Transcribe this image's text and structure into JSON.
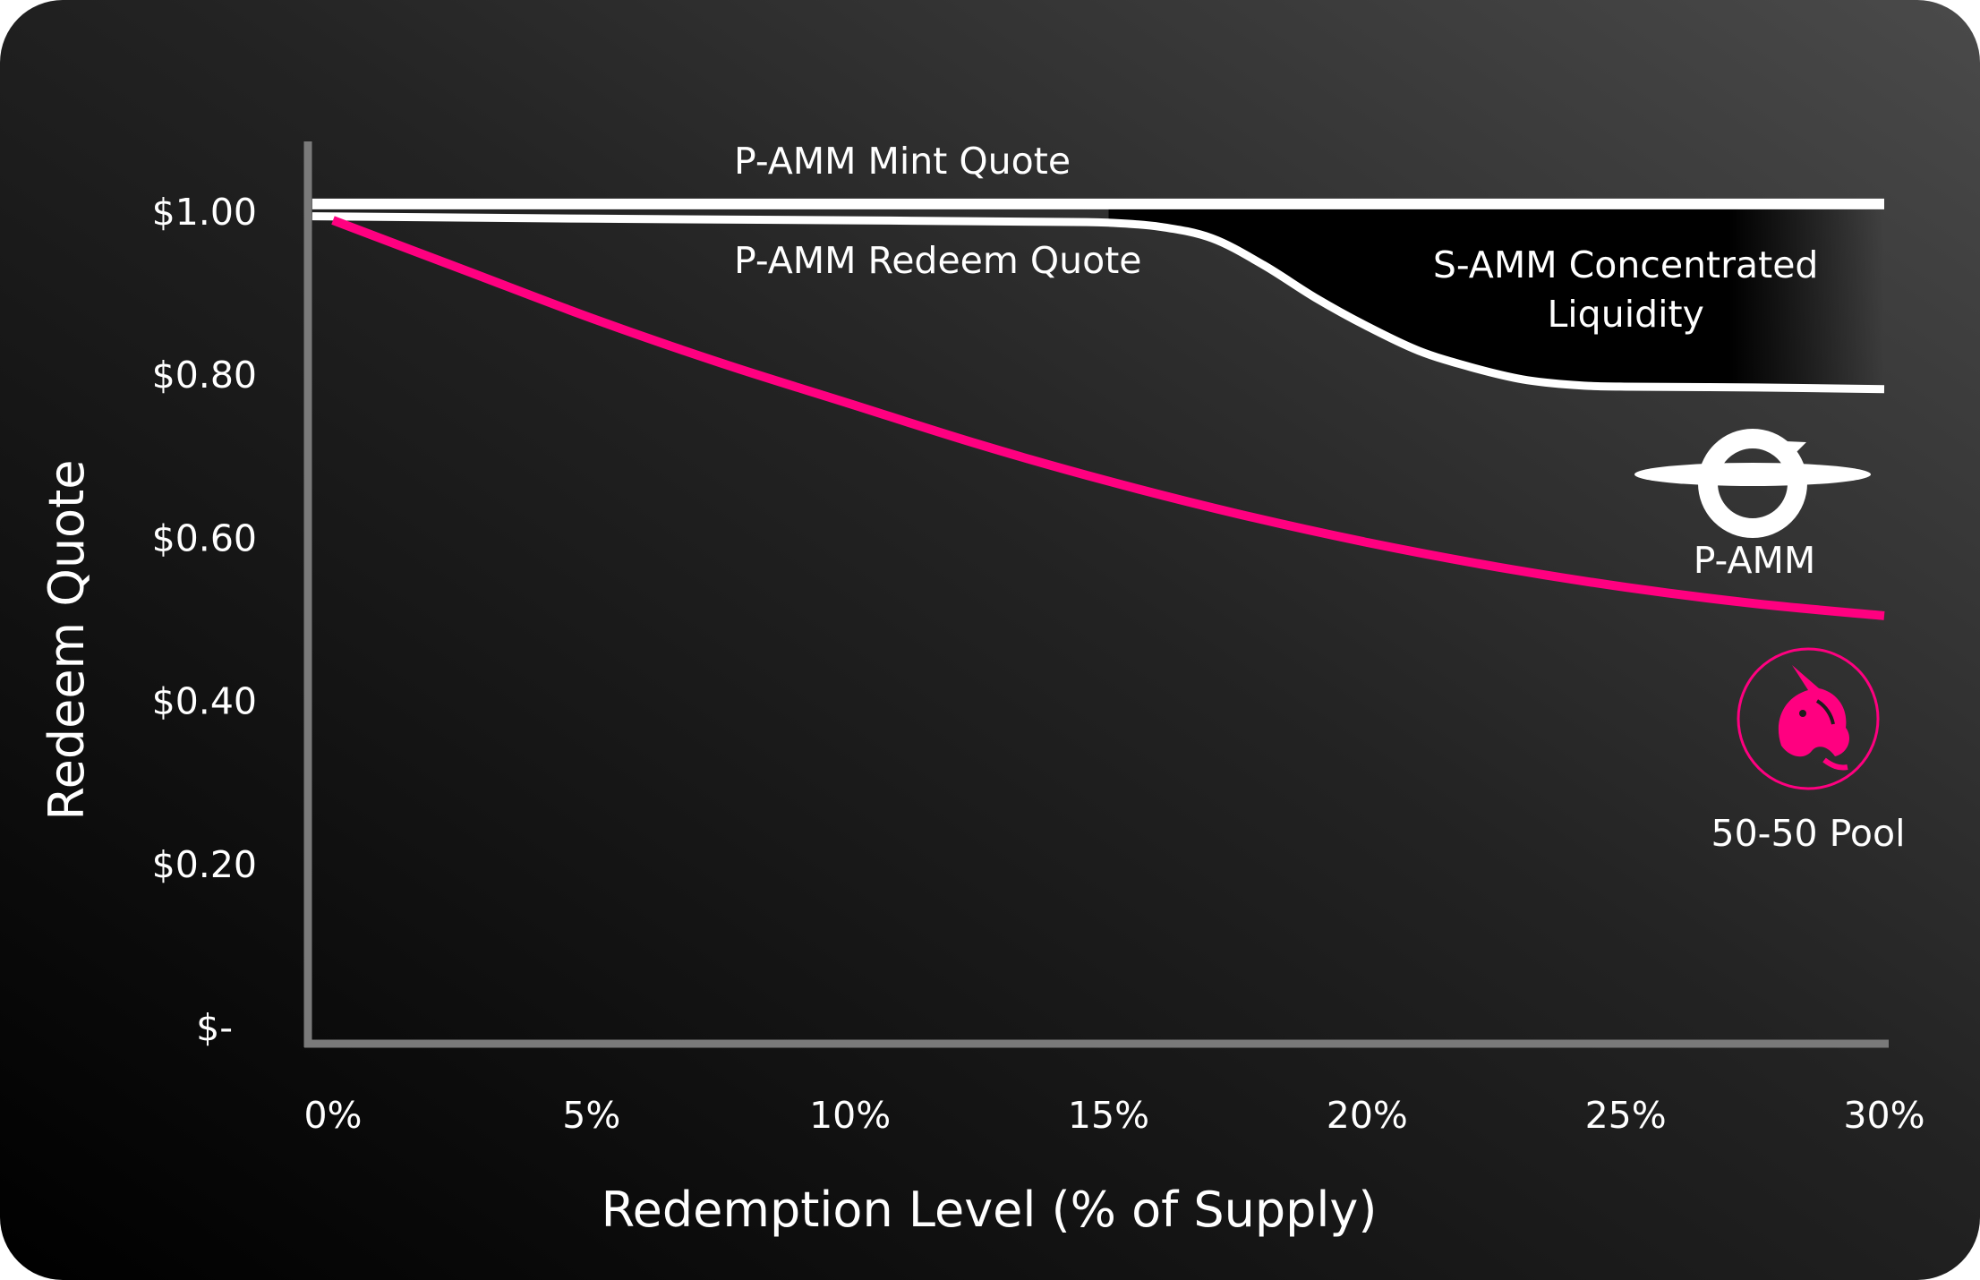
{
  "chart_data": {
    "type": "line",
    "title": "",
    "xlabel": "Redemption Level (% of Supply)",
    "ylabel": "Redeem Quote",
    "xlim": [
      0,
      30
    ],
    "ylim": [
      0,
      1.05
    ],
    "x_ticks": [
      0,
      5,
      10,
      15,
      20,
      25,
      30
    ],
    "x_tick_labels": [
      "0%",
      "5%",
      "10%",
      "15%",
      "20%",
      "25%",
      "30%"
    ],
    "y_ticks": [
      0,
      0.2,
      0.4,
      0.6,
      0.8,
      1.0
    ],
    "y_tick_labels": [
      "$-",
      "$0.20",
      "$0.40",
      "$0.60",
      "$0.80",
      "$1.00"
    ],
    "grid": false,
    "series": [
      {
        "name": "P-AMM Mint Quote",
        "color": "#ffffff",
        "x": [
          -0.4,
          30
        ],
        "y": [
          1.01,
          1.01
        ]
      },
      {
        "name": "P-AMM Redeem Quote",
        "color": "#ffffff",
        "x": [
          -0.4,
          5,
          10,
          14,
          15,
          16,
          17,
          18,
          19,
          20,
          21,
          22,
          23,
          24,
          25,
          27.5,
          30
        ],
        "y": [
          0.995,
          0.992,
          0.99,
          0.988,
          0.987,
          0.982,
          0.968,
          0.935,
          0.895,
          0.86,
          0.83,
          0.81,
          0.795,
          0.788,
          0.786,
          0.785,
          0.783
        ]
      },
      {
        "name": "50-50 Pool",
        "color": "#ff0080",
        "x": [
          0,
          2.5,
          5,
          7.5,
          10,
          12.5,
          15,
          17.5,
          20,
          22.5,
          25,
          27.5,
          30
        ],
        "y": [
          0.99,
          0.93,
          0.87,
          0.815,
          0.765,
          0.715,
          0.67,
          0.63,
          0.595,
          0.565,
          0.54,
          0.52,
          0.505
        ]
      }
    ],
    "annotations": [
      {
        "text": "S-AMM Concentrated",
        "x": 25,
        "y": 0.935
      },
      {
        "text": "Liquidity",
        "x": 25,
        "y": 0.875
      }
    ],
    "legend_badges": [
      {
        "label": "P-AMM",
        "icon": "gyroscope-logo-icon",
        "color": "#ffffff"
      },
      {
        "label": "50-50 Pool",
        "icon": "unicorn-logo-icon",
        "color": "#ff0080"
      }
    ],
    "shaded_region": {
      "name": "S-AMM Concentrated Liquidity",
      "between": [
        "P-AMM Mint Quote",
        "P-AMM Redeem Quote"
      ],
      "x_from": 15,
      "color": "#000000"
    }
  }
}
